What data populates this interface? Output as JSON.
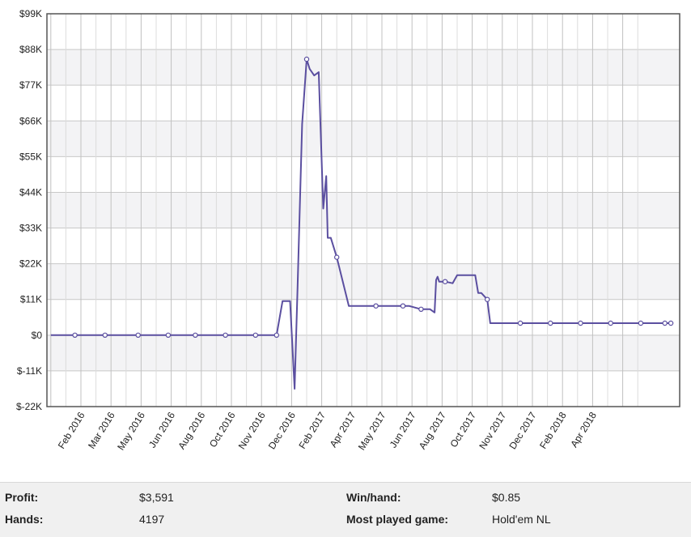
{
  "chart_data": {
    "type": "line",
    "title": "",
    "xlabel": "",
    "ylabel": "",
    "ylim": [
      -22000,
      99000
    ],
    "y_ticks": [
      "$-22K",
      "$-11K",
      "$0",
      "$11K",
      "$22K",
      "$33K",
      "$44K",
      "$55K",
      "$66K",
      "$77K",
      "$88K",
      "$99K"
    ],
    "x_ticks": [
      "Feb 2016",
      "Mar 2016",
      "May 2016",
      "Jun 2016",
      "Aug 2016",
      "Oct 2016",
      "Nov 2016",
      "Dec 2016",
      "Feb 2017",
      "Apr 2017",
      "May 2017",
      "Jun 2017",
      "Aug 2017",
      "Oct 2017",
      "Nov 2017",
      "Dec 2017",
      "Feb 2018",
      "Apr 2018"
    ],
    "grid": true,
    "line_color": "#5b4fa0",
    "series": [
      {
        "x": [
          0,
          0.8,
          1.8,
          2.9,
          3.9,
          4.8,
          5.8,
          6.8,
          7.1,
          7.35,
          7.45,
          7.5,
          7.7,
          7.95,
          8.1,
          8.2,
          8.35,
          8.5,
          8.6,
          8.75,
          8.9,
          9.05,
          9.15,
          9.2,
          9.3,
          9.5,
          9.9,
          10.8,
          11.7,
          11.9,
          12.3,
          12.6,
          12.75,
          12.8,
          12.85,
          12.9,
          13.1,
          13.35,
          13.5,
          13.8,
          14.0,
          14.1,
          14.2,
          14.3,
          14.4,
          14.5,
          14.6,
          15.6,
          16.6,
          17.6,
          18.6,
          19.6,
          20.4,
          20.6
        ],
        "y": [
          0,
          0,
          0,
          0,
          0,
          0,
          0,
          0,
          0,
          0,
          0,
          0,
          10500,
          10500,
          -16500,
          15000,
          65000,
          85000,
          82000,
          80000,
          81000,
          39000,
          49000,
          30000,
          30000,
          24000,
          9000,
          9000,
          9000,
          9000,
          8000,
          8000,
          7000,
          17000,
          18000,
          16500,
          16500,
          16000,
          18500,
          18500,
          18500,
          18500,
          13000,
          13000,
          12000,
          11000,
          3700,
          3700,
          3700,
          3700,
          3700,
          3700,
          3700,
          3700
        ],
        "markers": [
          0.8,
          1.8,
          2.9,
          3.9,
          4.8,
          5.8,
          6.8,
          7.5,
          8.5,
          9.5,
          10.8,
          11.7,
          12.3,
          13.1,
          14.5,
          15.6,
          16.6,
          17.6,
          18.6,
          19.6,
          20.4,
          20.6
        ]
      }
    ]
  },
  "stats": {
    "profit_label": "Profit:",
    "profit_value": "$3,591",
    "hands_label": "Hands:",
    "hands_value": "4197",
    "winhand_label": "Win/hand:",
    "winhand_value": "$0.85",
    "game_label": "Most played game:",
    "game_value": "Hold'em NL"
  }
}
